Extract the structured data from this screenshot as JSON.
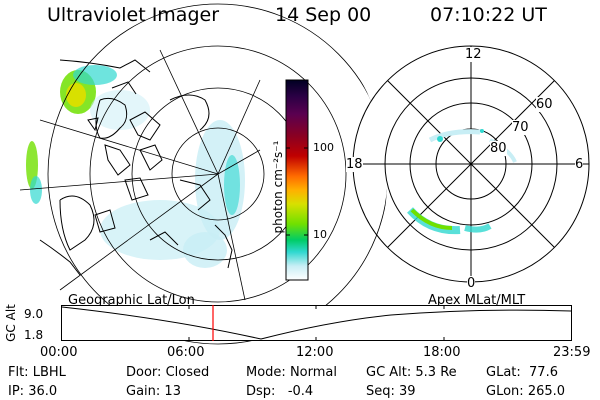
{
  "header": {
    "title": "Ultraviolet Imager",
    "date": "14 Sep 00",
    "time": "07:10:22 UT"
  },
  "colorbar": {
    "label": "photon cm⁻²s⁻¹",
    "ticks": [
      "100",
      "10"
    ],
    "colors": [
      "#000022",
      "#2a0044",
      "#5a0050",
      "#8a0022",
      "#c00000",
      "#ff3a00",
      "#ff9a00",
      "#d8e000",
      "#70e000",
      "#00cc66",
      "#30d8d0",
      "#c8eef5",
      "#ffffff"
    ]
  },
  "map_left": {
    "caption": "Geographic Lat/Lon"
  },
  "map_right": {
    "caption": "Apex MLat/MLT",
    "mlt_labels": {
      "top": "12",
      "left": "18",
      "right": "6",
      "bottom": "0"
    },
    "lat_labels": [
      "60",
      "70",
      "80"
    ]
  },
  "timeline": {
    "ylabel": "GC Alt",
    "yticks": [
      "9.0",
      "1.8"
    ],
    "xticks": [
      "00:00",
      "06:00",
      "12:00",
      "18:00",
      "23:59"
    ],
    "marker_time": "07:10",
    "colors": {
      "marker": "#ff0000"
    }
  },
  "info": {
    "flt_label": "Flt:",
    "flt_value": "LBHL",
    "ip_label": "IP:",
    "ip_value": "36.0",
    "door_label": "Door:",
    "door_value": "Closed",
    "gain_label": "Gain:",
    "gain_value": "13",
    "mode_label": "Mode:",
    "mode_value": "Normal",
    "dsp_label": "Dsp:",
    "dsp_value": "-0.4",
    "gcalt_label": "GC Alt:",
    "gcalt_value": "5.3 Re",
    "seq_label": "Seq:",
    "seq_value": "39",
    "glat_label": "GLat:",
    "glat_value": "77.6",
    "glon_label": "GLon:",
    "glon_value": "265.0"
  }
}
